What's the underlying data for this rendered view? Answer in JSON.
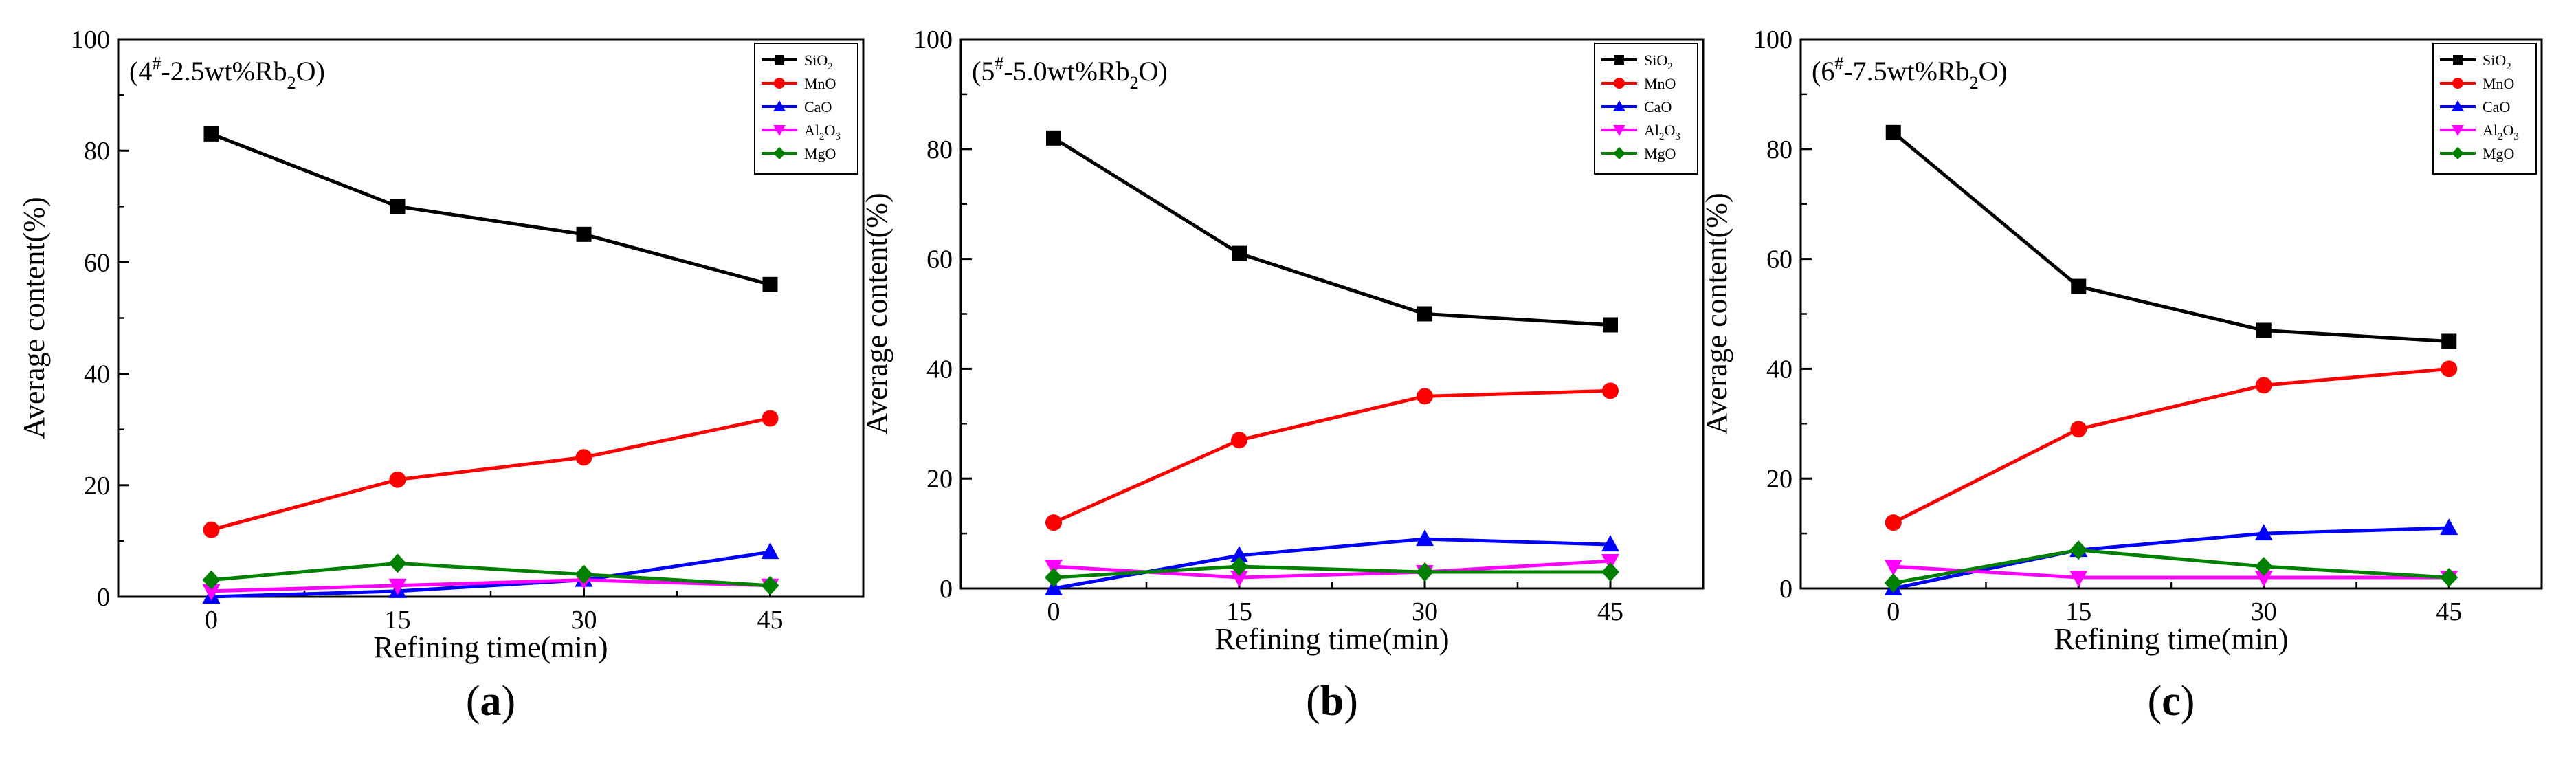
{
  "colors": {
    "SiO2": "#000000",
    "MnO": "#ff0000",
    "CaO": "#0000ff",
    "Al2O3": "#ff00ff",
    "MgO": "#008000"
  },
  "legend_labels": [
    {
      "base": "SiO",
      "sub": "2",
      "tail": "",
      "tail_sub": "",
      "series": "SiO2"
    },
    {
      "base": "MnO",
      "sub": "",
      "tail": "",
      "tail_sub": "",
      "series": "MnO"
    },
    {
      "base": "CaO",
      "sub": "",
      "tail": "",
      "tail_sub": "",
      "series": "CaO"
    },
    {
      "base": "Al",
      "sub": "2",
      "tail": "O",
      "tail_sub": "3",
      "series": "Al2O3"
    },
    {
      "base": "MgO",
      "sub": "",
      "tail": "",
      "tail_sub": "",
      "series": "MgO"
    }
  ],
  "chart_data": [
    {
      "type": "line",
      "panel_label": "(a)",
      "annotation": {
        "pre": "(4",
        "sup": "#",
        "mid": "-2.5wt%Rb",
        "sub": "2",
        "post": "O)"
      },
      "xlabel": "Refining time(min)",
      "ylabel": "Average content(%)",
      "x": [
        0,
        15,
        30,
        45
      ],
      "x_ticks": [
        "0",
        "15",
        "30",
        "45"
      ],
      "y_ticks": [
        "0",
        "20",
        "40",
        "60",
        "80",
        "100"
      ],
      "xlim": [
        -7.5,
        52.5
      ],
      "ylim": [
        0,
        100
      ],
      "legend_position": "top-right",
      "series": [
        {
          "name": "SiO2",
          "marker": "square",
          "values": [
            83,
            70,
            65,
            56
          ]
        },
        {
          "name": "MnO",
          "marker": "circle",
          "values": [
            12,
            21,
            25,
            32
          ]
        },
        {
          "name": "CaO",
          "marker": "triangle-up",
          "values": [
            0,
            1,
            3,
            8
          ]
        },
        {
          "name": "Al2O3",
          "marker": "triangle-down",
          "values": [
            1,
            2,
            3,
            2
          ]
        },
        {
          "name": "MgO",
          "marker": "diamond",
          "values": [
            3,
            6,
            4,
            2
          ]
        }
      ]
    },
    {
      "type": "line",
      "panel_label": "(b)",
      "annotation": {
        "pre": "(5",
        "sup": "#",
        "mid": "-5.0wt%Rb",
        "sub": "2",
        "post": "O)"
      },
      "xlabel": "Refining time(min)",
      "ylabel": "Average content(%)",
      "x": [
        0,
        15,
        30,
        45
      ],
      "x_ticks": [
        "0",
        "15",
        "30",
        "45"
      ],
      "y_ticks": [
        "0",
        "20",
        "40",
        "60",
        "80",
        "100"
      ],
      "xlim": [
        -7.5,
        52.5
      ],
      "ylim": [
        0,
        100
      ],
      "legend_position": "top-right",
      "series": [
        {
          "name": "SiO2",
          "marker": "square",
          "values": [
            82,
            61,
            50,
            48
          ]
        },
        {
          "name": "MnO",
          "marker": "circle",
          "values": [
            12,
            27,
            35,
            36
          ]
        },
        {
          "name": "CaO",
          "marker": "triangle-up",
          "values": [
            0,
            6,
            9,
            8
          ]
        },
        {
          "name": "Al2O3",
          "marker": "triangle-down",
          "values": [
            4,
            2,
            3,
            5
          ]
        },
        {
          "name": "MgO",
          "marker": "diamond",
          "values": [
            2,
            4,
            3,
            3
          ]
        }
      ]
    },
    {
      "type": "line",
      "panel_label": "(c)",
      "annotation": {
        "pre": "(6",
        "sup": "#",
        "mid": "-7.5wt%Rb",
        "sub": "2",
        "post": "O)"
      },
      "xlabel": "Refining time(min)",
      "ylabel": "Average content(%)",
      "x": [
        0,
        15,
        30,
        45
      ],
      "x_ticks": [
        "0",
        "15",
        "30",
        "45"
      ],
      "y_ticks": [
        "0",
        "20",
        "40",
        "60",
        "80",
        "100"
      ],
      "xlim": [
        -7.5,
        52.5
      ],
      "ylim": [
        0,
        100
      ],
      "legend_position": "top-right",
      "series": [
        {
          "name": "SiO2",
          "marker": "square",
          "values": [
            83,
            55,
            47,
            45
          ]
        },
        {
          "name": "MnO",
          "marker": "circle",
          "values": [
            12,
            29,
            37,
            40
          ]
        },
        {
          "name": "CaO",
          "marker": "triangle-up",
          "values": [
            0,
            7,
            10,
            11
          ]
        },
        {
          "name": "Al2O3",
          "marker": "triangle-down",
          "values": [
            4,
            2,
            2,
            2
          ]
        },
        {
          "name": "MgO",
          "marker": "diamond",
          "values": [
            1,
            7,
            4,
            2
          ]
        }
      ]
    }
  ]
}
